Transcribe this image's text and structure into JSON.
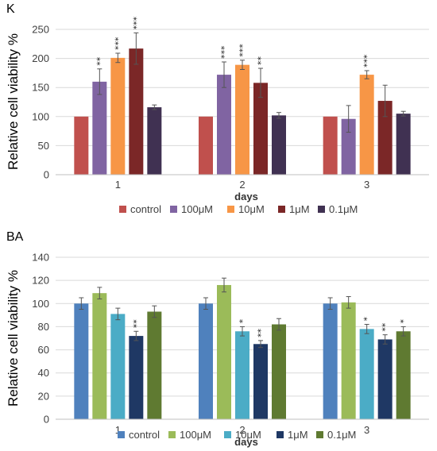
{
  "chart_data": [
    {
      "type": "bar",
      "panel_label": "K",
      "title": "",
      "xlabel": "days",
      "ylabel": "Relative cell viability %",
      "ylim": [
        0,
        250
      ],
      "yticks": [
        0,
        50,
        100,
        150,
        200,
        250
      ],
      "categories": [
        "1",
        "2",
        "3"
      ],
      "grid": true,
      "legend_position": "bottom",
      "series": [
        {
          "name": "control",
          "color": "#c0504d",
          "values": [
            100,
            100,
            100
          ],
          "errors": [
            0,
            0,
            0
          ],
          "sig": [
            "",
            "",
            ""
          ]
        },
        {
          "name": "100μM",
          "color": "#8064a2",
          "values": [
            160,
            172,
            96
          ],
          "errors": [
            22,
            22,
            23
          ],
          "sig": [
            "**",
            "***",
            ""
          ]
        },
        {
          "name": "10μM",
          "color": "#f79646",
          "values": [
            201,
            189,
            172
          ],
          "errors": [
            8,
            8,
            7
          ],
          "sig": [
            "***",
            "***",
            "***"
          ]
        },
        {
          "name": "1μM",
          "color": "#7b2727",
          "values": [
            217,
            158,
            127
          ],
          "errors": [
            27,
            25,
            27
          ],
          "sig": [
            "***",
            "**",
            ""
          ]
        },
        {
          "name": "0.1μM",
          "color": "#403152",
          "values": [
            116,
            102,
            105
          ],
          "errors": [
            4,
            5,
            4
          ],
          "sig": [
            "",
            "",
            ""
          ]
        }
      ]
    },
    {
      "type": "bar",
      "panel_label": "BA",
      "title": "",
      "xlabel": "days",
      "ylabel": "Relative cell viability %",
      "ylim": [
        0,
        140
      ],
      "yticks": [
        0,
        20,
        40,
        60,
        80,
        100,
        120,
        140
      ],
      "categories": [
        "1",
        "2",
        "3"
      ],
      "grid": true,
      "legend_position": "bottom",
      "series": [
        {
          "name": "control",
          "color": "#4f81bd",
          "values": [
            100,
            100,
            100
          ],
          "errors": [
            5,
            5,
            5
          ],
          "sig": [
            "",
            "",
            ""
          ]
        },
        {
          "name": "100μM",
          "color": "#9bbb59",
          "values": [
            109,
            116,
            101
          ],
          "errors": [
            5,
            6,
            5
          ],
          "sig": [
            "",
            "",
            ""
          ]
        },
        {
          "name": "10μM",
          "color": "#4bacc6",
          "values": [
            91,
            76,
            78
          ],
          "errors": [
            5,
            4,
            4
          ],
          "sig": [
            "",
            "*",
            "*"
          ]
        },
        {
          "name": "1μM",
          "color": "#1f3864",
          "values": [
            72,
            65,
            69
          ],
          "errors": [
            4,
            3,
            4
          ],
          "sig": [
            "**",
            "**",
            "**"
          ]
        },
        {
          "name": "0.1μM",
          "color": "#5f7a31",
          "values": [
            93,
            82,
            76
          ],
          "errors": [
            5,
            5,
            4
          ],
          "sig": [
            "",
            "",
            "*"
          ]
        }
      ]
    }
  ]
}
